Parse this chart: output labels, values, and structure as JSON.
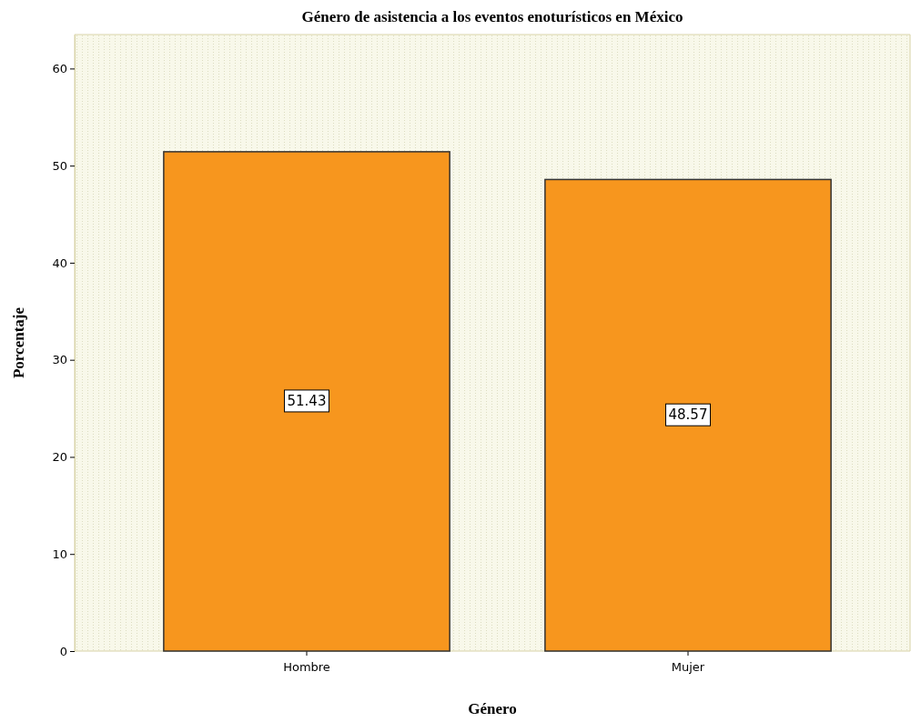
{
  "chart_data": {
    "type": "bar",
    "title": "Género de asistencia a los eventos enoturísticos en México",
    "xlabel": "Género",
    "ylabel": "Porcentaje",
    "categories": [
      "Hombre",
      "Mujer"
    ],
    "values": [
      51.43,
      48.57
    ],
    "color": "#f7961e",
    "ylim": [
      0,
      63.5
    ],
    "yticks": [
      0,
      10,
      20,
      30,
      40,
      50,
      60
    ],
    "grid": false,
    "data_labels": true
  }
}
